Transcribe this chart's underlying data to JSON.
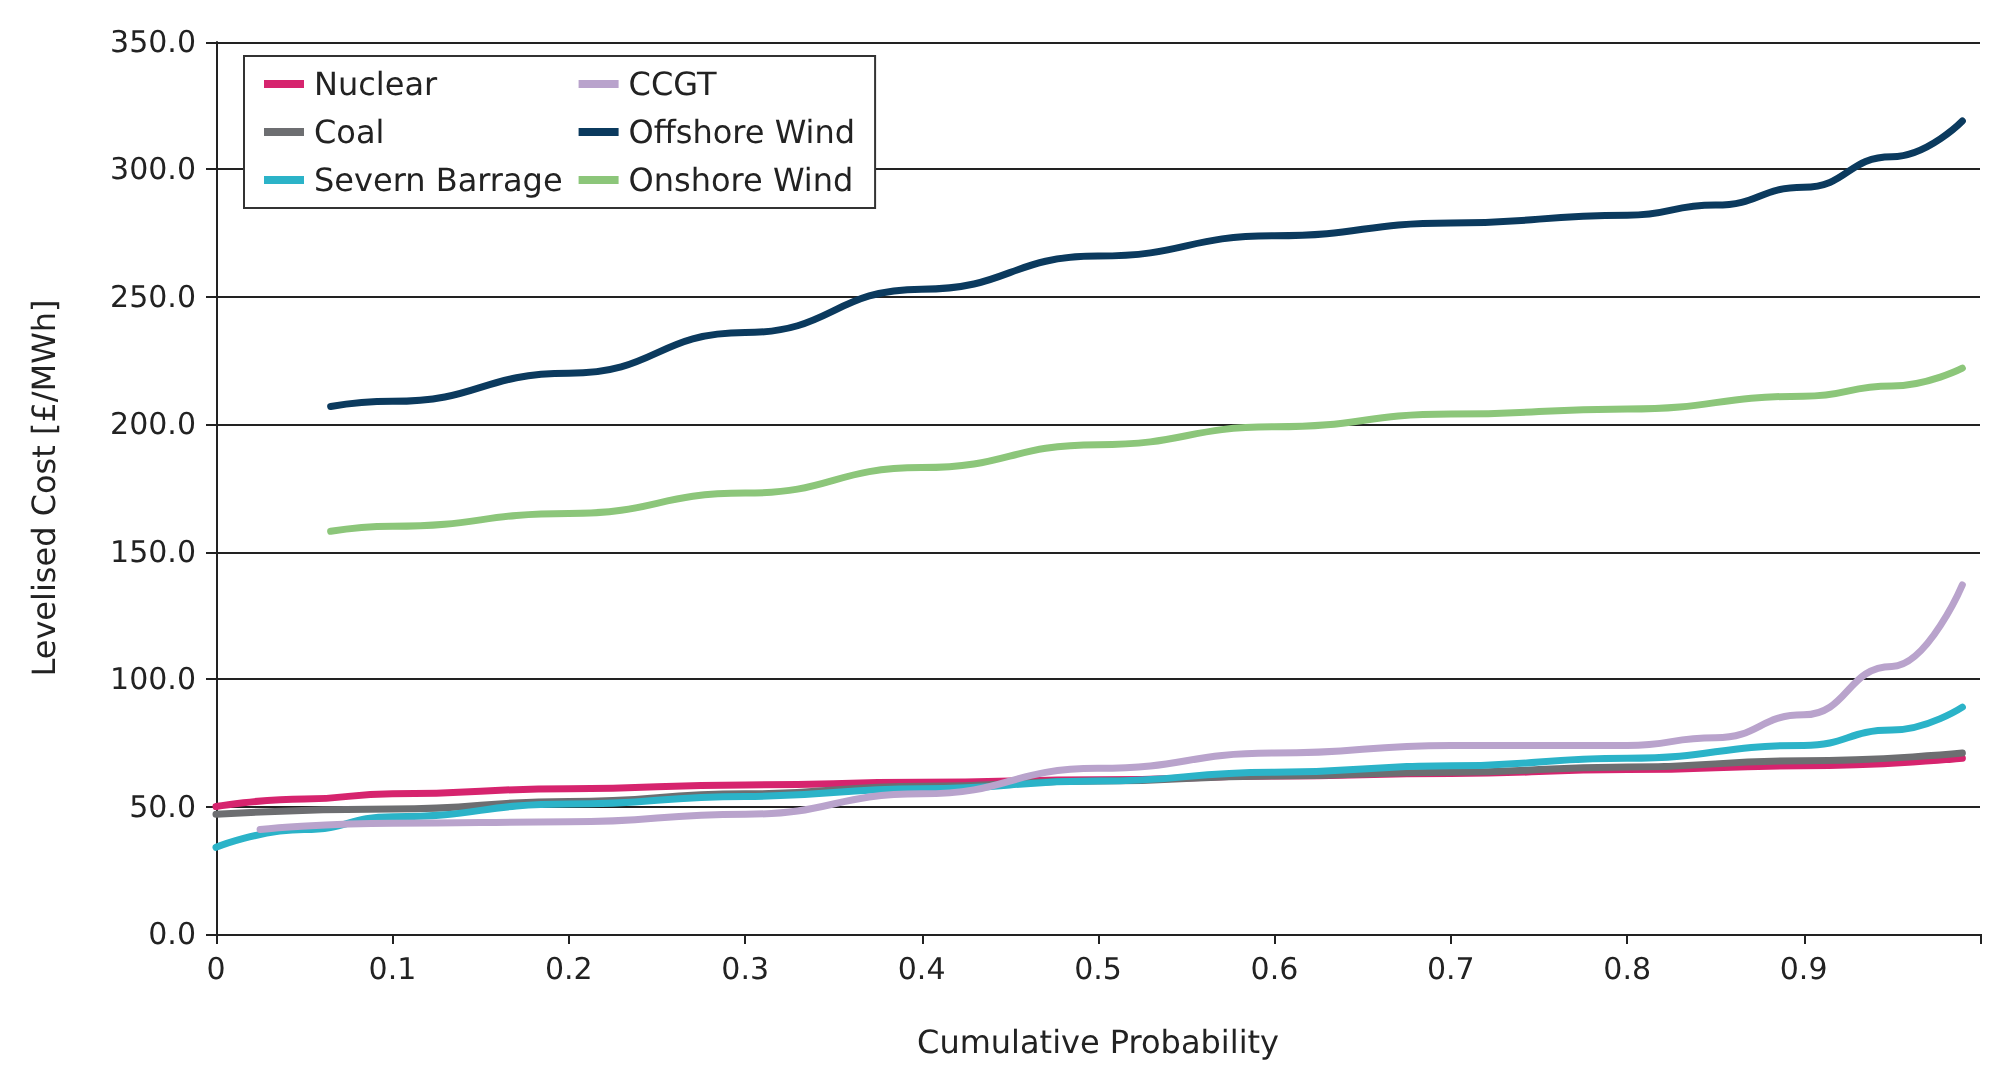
{
  "chart_data": {
    "type": "line",
    "xlabel": "Cumulative Probability",
    "ylabel": "Levelised Cost [£/MWh]",
    "xlim": [
      0,
      1
    ],
    "xticks": [
      0,
      0.1,
      0.2,
      0.3,
      0.4,
      0.5,
      0.6,
      0.7,
      0.8,
      0.9,
      {
        "value": 1,
        "label": null
      }
    ],
    "ylim": [
      0,
      350
    ],
    "yticks": [
      {
        "value": 0,
        "label": "0.0"
      },
      {
        "value": 50,
        "label": "50.0"
      },
      {
        "value": 100,
        "label": "100.0"
      },
      {
        "value": 150,
        "label": "150.0"
      },
      {
        "value": 200,
        "label": "200.0"
      },
      {
        "value": 250,
        "label": "250.0"
      },
      {
        "value": 300,
        "label": "300.0"
      },
      {
        "value": 350,
        "label": "350.0"
      }
    ],
    "grid": "y",
    "legend": "top left",
    "marker": "none",
    "line_style": "solid",
    "series": [
      {
        "name": "Nuclear",
        "color": "#d6246e",
        "x": [
          0,
          0.05,
          0.1,
          0.2,
          0.3,
          0.4,
          0.5,
          0.6,
          0.7,
          0.8,
          0.9,
          0.99
        ],
        "values": [
          50,
          53,
          55,
          57,
          58.5,
          59.5,
          60.5,
          62,
          63,
          64.5,
          66,
          69
        ]
      },
      {
        "name": "Coal",
        "color": "#6d6e71",
        "x": [
          0,
          0.1,
          0.2,
          0.3,
          0.4,
          0.5,
          0.6,
          0.7,
          0.8,
          0.9,
          0.99
        ],
        "values": [
          47,
          49,
          52,
          55,
          58,
          60,
          62,
          63.5,
          65.5,
          68,
          71
        ]
      },
      {
        "name": "Severn Barrage",
        "color": "#2bb3c8",
        "x": [
          0,
          0.05,
          0.1,
          0.2,
          0.3,
          0.4,
          0.5,
          0.6,
          0.7,
          0.8,
          0.9,
          0.95,
          0.99
        ],
        "values": [
          34,
          41,
          46,
          51,
          54,
          57,
          60,
          63.5,
          66,
          69,
          74,
          80,
          89
        ]
      },
      {
        "name": "CCGT",
        "color": "#b9a3cc",
        "x": [
          0.025,
          0.1,
          0.2,
          0.3,
          0.4,
          0.5,
          0.6,
          0.7,
          0.8,
          0.85,
          0.9,
          0.95,
          0.99
        ],
        "values": [
          41,
          43.5,
          44,
          47,
          55,
          65,
          71,
          74,
          74,
          77,
          86,
          105,
          137
        ]
      },
      {
        "name": "Offshore Wind",
        "color": "#0b3a5e",
        "x": [
          0.065,
          0.1,
          0.2,
          0.3,
          0.4,
          0.5,
          0.6,
          0.7,
          0.8,
          0.85,
          0.9,
          0.95,
          0.99
        ],
        "values": [
          207,
          209,
          220,
          236,
          253,
          266,
          274,
          279,
          282,
          286,
          293,
          305,
          319
        ]
      },
      {
        "name": "Onshore Wind",
        "color": "#8cc67a",
        "x": [
          0.065,
          0.1,
          0.2,
          0.3,
          0.4,
          0.5,
          0.6,
          0.7,
          0.8,
          0.9,
          0.95,
          0.99
        ],
        "values": [
          158,
          160,
          165,
          173,
          183,
          192,
          199,
          204,
          206,
          211,
          215,
          222
        ]
      }
    ]
  }
}
